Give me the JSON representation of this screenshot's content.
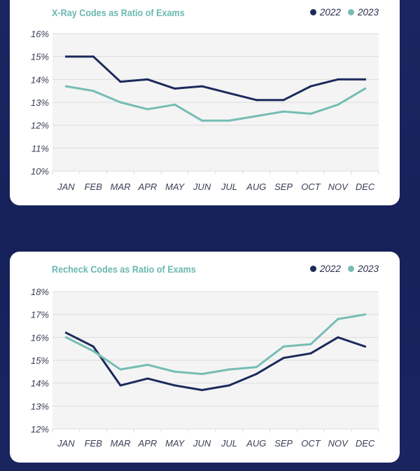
{
  "colors": {
    "series_2022": "#1c2a5c",
    "series_2023": "#75bdb4",
    "title": "#6ab8b0",
    "plot_bg": "#f4f4f4",
    "grid": "#dcdcdc"
  },
  "chart_data": [
    {
      "type": "line",
      "title": "X-Ray Codes as Ratio of Exams",
      "categories": [
        "JAN",
        "FEB",
        "MAR",
        "APR",
        "MAY",
        "JUN",
        "JUL",
        "AUG",
        "SEP",
        "OCT",
        "NOV",
        "DEC"
      ],
      "yticks": [
        "10%",
        "11%",
        "12%",
        "13%",
        "14%",
        "15%",
        "16%"
      ],
      "ylim": [
        10,
        16
      ],
      "grid": true,
      "legend_position": "top-right",
      "series": [
        {
          "name": "2022",
          "values": [
            15.0,
            15.0,
            13.9,
            14.0,
            13.6,
            13.7,
            13.4,
            13.1,
            13.1,
            13.7,
            14.0,
            14.0
          ]
        },
        {
          "name": "2023",
          "values": [
            13.7,
            13.5,
            13.0,
            12.7,
            12.9,
            12.2,
            12.2,
            12.4,
            12.6,
            12.5,
            12.9,
            13.6
          ]
        }
      ]
    },
    {
      "type": "line",
      "title": "Recheck Codes as Ratio of Exams",
      "categories": [
        "JAN",
        "FEB",
        "MAR",
        "APR",
        "MAY",
        "JUN",
        "JUL",
        "AUG",
        "SEP",
        "OCT",
        "NOV",
        "DEC"
      ],
      "yticks": [
        "12%",
        "13%",
        "14%",
        "15%",
        "16%",
        "17%",
        "18%"
      ],
      "ylim": [
        12,
        18
      ],
      "grid": true,
      "legend_position": "top-right",
      "series": [
        {
          "name": "2022",
          "values": [
            16.2,
            15.6,
            13.9,
            14.2,
            13.9,
            13.7,
            13.9,
            14.4,
            15.1,
            15.3,
            16.0,
            15.6
          ]
        },
        {
          "name": "2023",
          "values": [
            16.0,
            15.4,
            14.6,
            14.8,
            14.5,
            14.4,
            14.6,
            14.7,
            15.6,
            15.7,
            16.8,
            17.0
          ]
        }
      ]
    }
  ]
}
